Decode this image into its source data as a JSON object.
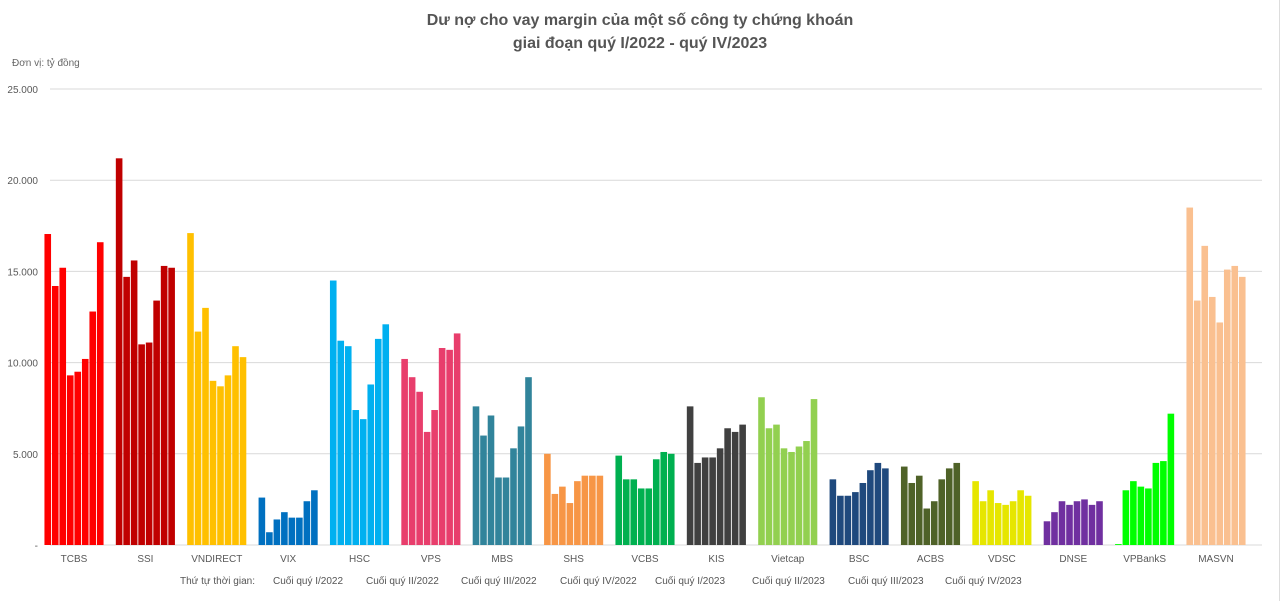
{
  "chart_data": {
    "type": "bar",
    "title": "Dư nợ cho vay margin của một số công ty chứng khoán",
    "subtitle": "giai đoạn quý I/2022 - quý IV/2023",
    "unit_label": "Đơn vị: tỷ đồng",
    "ylim": [
      0,
      25000
    ],
    "yticks": [
      0,
      5000,
      10000,
      15000,
      20000,
      25000
    ],
    "ytick_labels": [
      "-",
      "5.000",
      "10.000",
      "15.000",
      "20.000",
      "25.000"
    ],
    "grid": true,
    "legend_title": "Thứ tự thời gian:",
    "periods": [
      "Cuối quý I/2022",
      "Cuối quý II/2022",
      "Cuối quý III/2022",
      "Cuối quý IV/2022",
      "Cuối quý I/2023",
      "Cuối quý II/2023",
      "Cuối quý III/2023",
      "Cuối quý IV/2023"
    ],
    "categories": [
      "TCBS",
      "SSI",
      "VNDIRECT",
      "VIX",
      "HSC",
      "VPS",
      "MBS",
      "SHS",
      "VCBS",
      "KIS",
      "Vietcap",
      "BSC",
      "ACBS",
      "VDSC",
      "DNSE",
      "VPBankS",
      "MASVN"
    ],
    "colors": [
      "#ff0000",
      "#c00000",
      "#ffc000",
      "#0070c0",
      "#00b0f0",
      "#e83e6c",
      "#31849b",
      "#f79646",
      "#00b050",
      "#404040",
      "#92d050",
      "#1f497d",
      "#4f6228",
      "#e6e600",
      "#7030a0",
      "#00ff00",
      "#fac090"
    ],
    "values": [
      [
        17050,
        14200,
        15200,
        9300,
        9500,
        10200,
        12800,
        16600
      ],
      [
        21200,
        14700,
        15600,
        11000,
        11100,
        13400,
        15300,
        15200
      ],
      [
        17100,
        11700,
        13000,
        9000,
        8700,
        9300,
        10900,
        10300
      ],
      [
        2600,
        700,
        1400,
        1800,
        1500,
        1500,
        2400,
        3000
      ],
      [
        14500,
        11200,
        10900,
        7400,
        6900,
        8800,
        11300,
        12100
      ],
      [
        10200,
        9200,
        8400,
        6200,
        7400,
        10800,
        10700,
        11600
      ],
      [
        7600,
        6000,
        7100,
        3700,
        3700,
        5300,
        6500,
        9200
      ],
      [
        5000,
        2800,
        3200,
        2300,
        3500,
        3800,
        3800,
        3800
      ],
      [
        4900,
        3600,
        3600,
        3100,
        3100,
        4700,
        5100,
        5000
      ],
      [
        7600,
        4500,
        4800,
        4800,
        5300,
        6400,
        6200,
        6600
      ],
      [
        8100,
        6400,
        6600,
        5300,
        5100,
        5400,
        5700,
        8000
      ],
      [
        3600,
        2700,
        2700,
        2900,
        3400,
        4100,
        4500,
        4200
      ],
      [
        4300,
        3400,
        3800,
        2000,
        2400,
        3600,
        4200,
        4500
      ],
      [
        3500,
        2400,
        3000,
        2300,
        2200,
        2400,
        3000,
        2700
      ],
      [
        1300,
        1800,
        2400,
        2200,
        2400,
        2500,
        2200,
        2400
      ],
      [
        50,
        3000,
        3500,
        3200,
        3100,
        4500,
        4600,
        7200
      ],
      [
        18500,
        13400,
        16400,
        13600,
        12200,
        15100,
        15300,
        14700
      ]
    ]
  }
}
